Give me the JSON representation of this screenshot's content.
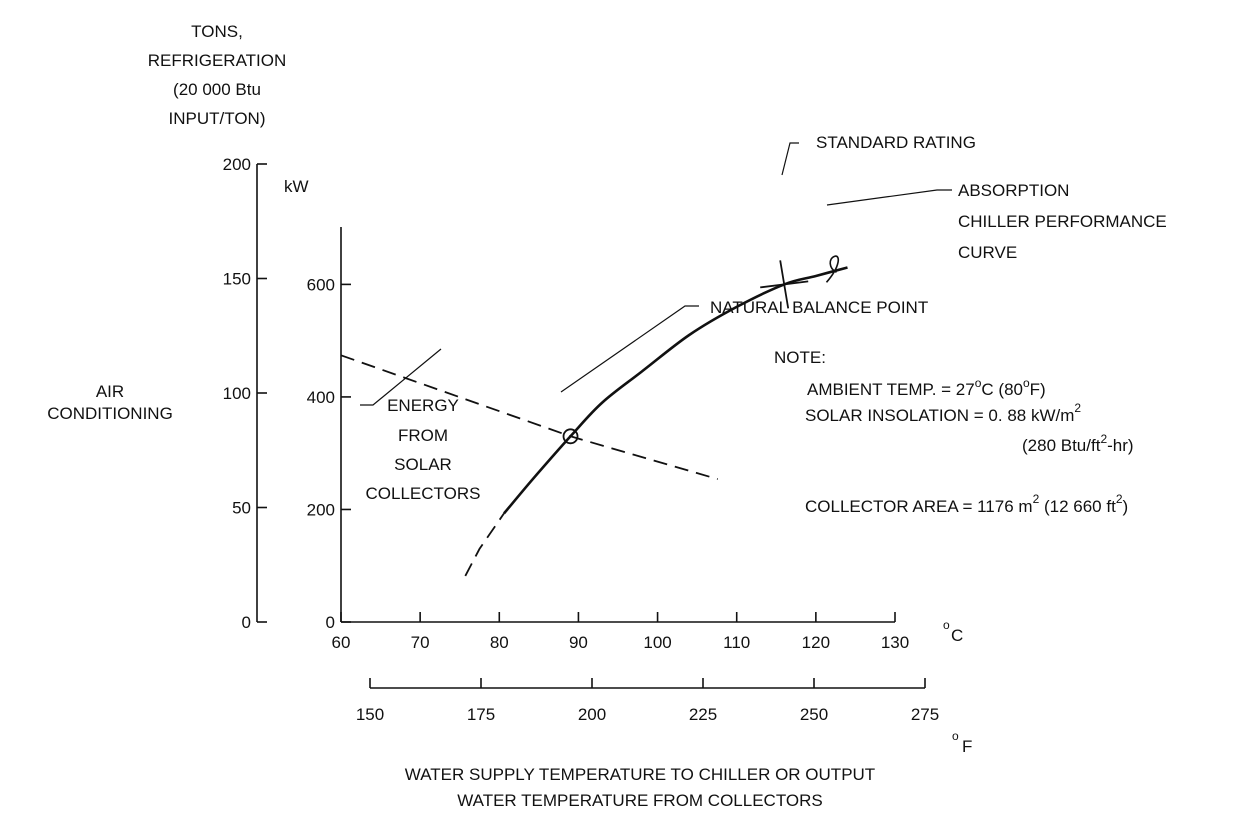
{
  "chart_data": {
    "type": "line",
    "tons_axis": {
      "title_lines": [
        "TONS,",
        "REFRIGERATION",
        "(20 000 Btu",
        "INPUT/TON)"
      ],
      "ticks": [
        "0",
        "50",
        "100",
        "150",
        "200"
      ],
      "range": [
        0,
        200
      ]
    },
    "ylabel_lines": [
      "AIR",
      "CONDITIONING"
    ],
    "kw_axis": {
      "unit": "kW",
      "ticks": [
        "0",
        "200",
        "400",
        "600"
      ],
      "range": [
        0,
        702
      ]
    },
    "x_axis_c": {
      "unit": "C",
      "ticks": [
        "60",
        "70",
        "80",
        "90",
        "100",
        "110",
        "120",
        "130"
      ],
      "range": [
        60,
        130
      ]
    },
    "x_axis_f": {
      "unit": "F",
      "ticks": [
        "150",
        "175",
        "200",
        "225",
        "250",
        "275"
      ],
      "range": [
        150,
        275
      ]
    },
    "xlabel_lines": [
      "WATER SUPPLY TEMPERATURE TO CHILLER OR OUTPUT",
      "WATER TEMPERATURE FROM COLLECTORS"
    ],
    "series": [
      {
        "name": "ABSORPTION CHILLER PERFORMANCE CURVE",
        "style": "solid",
        "x": [
          80.6,
          84,
          89,
          93,
          98,
          104,
          110,
          116,
          120,
          124
        ],
        "y": [
          193,
          250,
          330,
          390,
          445,
          510,
          560,
          600,
          615,
          630
        ]
      },
      {
        "style": "dashed",
        "x": [
          75.7,
          77.5,
          80.6
        ],
        "y": [
          82,
          130,
          193
        ]
      },
      {
        "name": "ENERGY FROM SOLAR COLLECTORS",
        "style": "dashed",
        "x": [
          60,
          89,
          107.6
        ],
        "y": [
          474,
          330,
          254
        ]
      }
    ],
    "markers": {
      "balance_point": {
        "x": 89,
        "y": 330
      },
      "standard_rating": {
        "x": 116,
        "y": 600
      },
      "cursor": {
        "x": 122.1,
        "y": 625
      }
    },
    "annotations": {
      "standard_rating": "STANDARD RATING",
      "chiller_curve": [
        "ABSORPTION",
        "CHILLER PERFORMANCE",
        "CURVE"
      ],
      "balance_point": "NATURAL BALANCE POINT",
      "energy": [
        "ENERGY",
        "FROM",
        "SOLAR",
        "COLLECTORS"
      ]
    },
    "note": {
      "title": "NOTE:",
      "ambient": {
        "text": "AMBIENT TEMP. = 27",
        "c_suffix": "C  (80",
        "f_suffix": "F)"
      },
      "insolation": {
        "text": "SOLAR INSOLATION  =  0. 88 kW/m",
        "exp": "2"
      },
      "insolation_alt": {
        "text": "(280 Btu/ft",
        "exp": "2",
        "suffix": "-hr)"
      },
      "area": {
        "text": "COLLECTOR AREA  =  1176 m",
        "exp": "2",
        "mid": " (12 660 ft",
        "exp2": "2",
        "end": ")"
      }
    },
    "grid": false
  }
}
